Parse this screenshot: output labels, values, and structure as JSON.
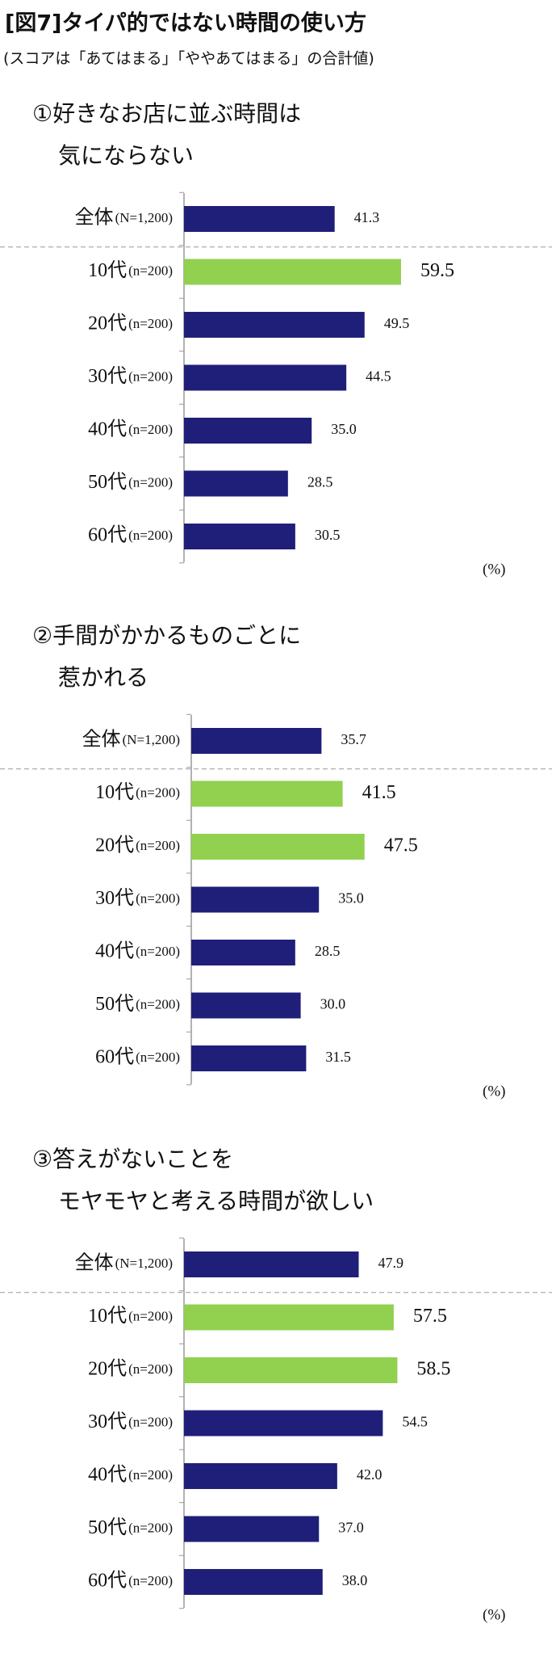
{
  "header": {
    "title": "[図7]タイパ的ではない時間の使い方",
    "subtitle": "(スコアは「あてはまる」「ややあてはまる」の合計値)"
  },
  "chart_data": [
    {
      "type": "bar",
      "orientation": "horizontal",
      "title": [
        "①好きなお店に並ぶ時間は",
        "気にならない"
      ],
      "categories": [
        "全体",
        "10代",
        "20代",
        "30代",
        "40代",
        "50代",
        "60代"
      ],
      "sample_sizes": [
        "(N=1,200)",
        "(n=200)",
        "(n=200)",
        "(n=200)",
        "(n=200)",
        "(n=200)",
        "(n=200)"
      ],
      "values": [
        41.3,
        59.5,
        49.5,
        44.5,
        35.0,
        28.5,
        30.5
      ],
      "value_labels": [
        "41.3",
        "59.5",
        "49.5",
        "44.5",
        "35.0",
        "28.5",
        "30.5"
      ],
      "colors": [
        "#1f1f7a",
        "#92d050",
        "#1f1f7a",
        "#1f1f7a",
        "#1f1f7a",
        "#1f1f7a",
        "#1f1f7a"
      ],
      "xlim": [
        0,
        100
      ],
      "unit": "(%)"
    },
    {
      "type": "bar",
      "orientation": "horizontal",
      "title": [
        "②手間がかかるものごとに",
        "惹かれる"
      ],
      "categories": [
        "全体",
        "10代",
        "20代",
        "30代",
        "40代",
        "50代",
        "60代"
      ],
      "sample_sizes": [
        "(N=1,200)",
        "(n=200)",
        "(n=200)",
        "(n=200)",
        "(n=200)",
        "(n=200)",
        "(n=200)"
      ],
      "values": [
        35.7,
        41.5,
        47.5,
        35.0,
        28.5,
        30.0,
        31.5
      ],
      "value_labels": [
        "35.7",
        "41.5",
        "47.5",
        "35.0",
        "28.5",
        "30.0",
        "31.5"
      ],
      "colors": [
        "#1f1f7a",
        "#92d050",
        "#92d050",
        "#1f1f7a",
        "#1f1f7a",
        "#1f1f7a",
        "#1f1f7a"
      ],
      "xlim": [
        0,
        100
      ],
      "unit": "(%)"
    },
    {
      "type": "bar",
      "orientation": "horizontal",
      "title": [
        "③答えがないことを",
        "モヤモヤと考える時間が欲しい"
      ],
      "categories": [
        "全体",
        "10代",
        "20代",
        "30代",
        "40代",
        "50代",
        "60代"
      ],
      "sample_sizes": [
        "(N=1,200)",
        "(n=200)",
        "(n=200)",
        "(n=200)",
        "(n=200)",
        "(n=200)",
        "(n=200)"
      ],
      "values": [
        47.9,
        57.5,
        58.5,
        54.5,
        42.0,
        37.0,
        38.0
      ],
      "value_labels": [
        "47.9",
        "57.5",
        "58.5",
        "54.5",
        "42.0",
        "37.0",
        "38.0"
      ],
      "colors": [
        "#1f1f7a",
        "#92d050",
        "#92d050",
        "#1f1f7a",
        "#1f1f7a",
        "#1f1f7a",
        "#1f1f7a"
      ],
      "xlim": [
        0,
        100
      ],
      "unit": "(%)"
    }
  ]
}
